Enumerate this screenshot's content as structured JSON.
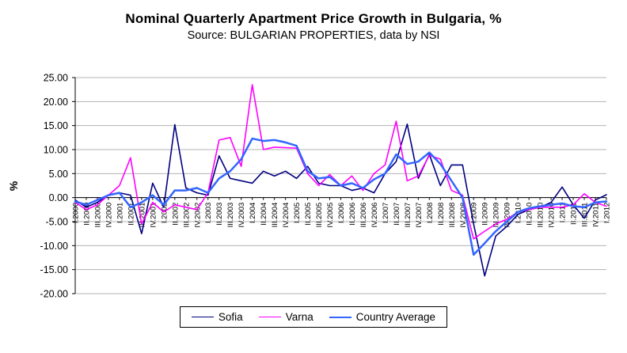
{
  "chart_data": {
    "type": "line",
    "title": "Nominal Quarterly Apartment Price Growth in Bulgaria, %",
    "subtitle": "Source: BULGARIAN PROPERTIES, data by NSI",
    "ylabel": "%",
    "xlabel": "",
    "ylim": [
      -20,
      25
    ],
    "ytick_step": 5,
    "grid": "horizontal",
    "legend_position": "bottom",
    "axis_color": "#000000",
    "gridline_color": "#b3b3b3",
    "categories": [
      "I.2000",
      "II.2000",
      "III.2000",
      "IV.2000",
      "I.2001",
      "II.2001",
      "III.2001",
      "IV.2001",
      "I.2002",
      "II.2002",
      "III.2002",
      "IV.2002",
      "I.2003",
      "II.2003",
      "III.2003",
      "IV.2003",
      "I.2004",
      "II.2004",
      "III.2004",
      "IV.2004",
      "I.2005",
      "II.2005",
      "III.2005",
      "IV.2005",
      "I.2006",
      "II.2006",
      "III.2006",
      "IV.2006",
      "I.2007",
      "II.2007",
      "III.2007",
      "IV.2007",
      "I.2008",
      "II.2008",
      "III.2008",
      "IV.2008",
      "I.2009",
      "II.2009",
      "III.2009",
      "IV.2009",
      "I.2010",
      "II.2010",
      "III.2010",
      "IV.2010",
      "I.2011",
      "II.2011",
      "III.2011",
      "IV.2011",
      "I.2012"
    ],
    "series": [
      {
        "name": "Sofia",
        "color": "#000080",
        "stroke_width": 1.6,
        "values": [
          -0.5,
          -2.0,
          -1.0,
          0.5,
          1.0,
          0.5,
          -7.5,
          3.0,
          -2.0,
          15.2,
          2.0,
          1.0,
          0.5,
          8.7,
          4.0,
          3.5,
          3.0,
          5.5,
          4.5,
          5.5,
          4.0,
          6.5,
          3.0,
          2.5,
          2.5,
          1.5,
          2.0,
          1.0,
          5.0,
          7.5,
          15.3,
          4.0,
          9.0,
          2.5,
          6.8,
          6.8,
          -5.5,
          -16.3,
          -8.0,
          -6.0,
          -3.5,
          -2.5,
          -2.0,
          -1.0,
          2.2,
          -1.5,
          -4.3,
          -0.5,
          0.6
        ]
      },
      {
        "name": "Varna",
        "color": "#FF00FF",
        "stroke_width": 1.6,
        "values": [
          -1.0,
          -2.5,
          -1.5,
          0.5,
          2.5,
          8.3,
          -5.5,
          -1.0,
          -3.0,
          -1.5,
          -2.0,
          -2.5,
          1.0,
          12.0,
          12.5,
          6.5,
          23.5,
          10.0,
          10.5,
          10.4,
          10.3,
          5.0,
          2.5,
          4.8,
          2.5,
          4.5,
          1.5,
          5.0,
          6.8,
          15.9,
          3.5,
          4.5,
          8.8,
          8.0,
          1.5,
          0.5,
          -8.6,
          -7.0,
          -5.5,
          -4.5,
          -3.0,
          -2.5,
          -2.0,
          -2.0,
          -2.0,
          -1.5,
          0.8,
          -1.0,
          -1.8
        ]
      },
      {
        "name": "Country Average",
        "color": "#3366FF",
        "stroke_width": 2.5,
        "values": [
          -0.8,
          -1.5,
          -0.5,
          0.5,
          1.0,
          -2.0,
          -1.0,
          0.5,
          -1.5,
          1.5,
          1.5,
          2.0,
          1.0,
          4.0,
          5.5,
          8.0,
          12.3,
          11.8,
          12.0,
          11.5,
          10.8,
          5.5,
          4.0,
          4.3,
          2.5,
          3.0,
          2.0,
          3.8,
          5.0,
          9.0,
          7.0,
          7.5,
          9.4,
          7.0,
          3.5,
          0.0,
          -11.9,
          -9.5,
          -7.0,
          -5.0,
          -3.0,
          -2.2,
          -1.8,
          -1.5,
          -1.2,
          -1.8,
          -2.0,
          -1.0,
          -0.8
        ]
      }
    ]
  }
}
